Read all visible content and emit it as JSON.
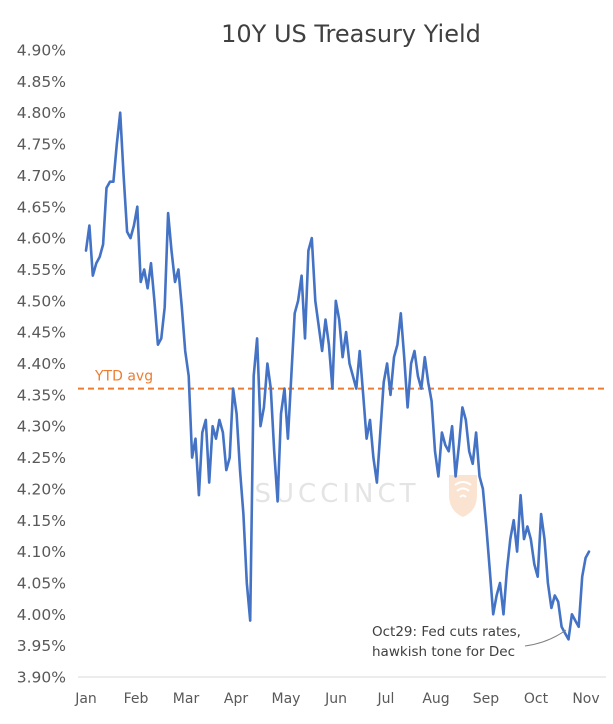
{
  "chart_data": {
    "type": "line",
    "title": "10Y US Treasury Yield",
    "xlabel": "",
    "ylabel": "",
    "ylim": [
      3.9,
      4.9
    ],
    "y_tick_values": [
      3.9,
      3.95,
      4.0,
      4.05,
      4.1,
      4.15,
      4.2,
      4.25,
      4.3,
      4.35,
      4.4,
      4.45,
      4.5,
      4.55,
      4.6,
      4.65,
      4.7,
      4.75,
      4.8,
      4.85,
      4.9
    ],
    "y_tick_labels": [
      "3.90%",
      "3.95%",
      "4.00%",
      "4.05%",
      "4.10%",
      "4.15%",
      "4.20%",
      "4.25%",
      "4.30%",
      "4.35%",
      "4.40%",
      "4.45%",
      "4.50%",
      "4.55%",
      "4.60%",
      "4.65%",
      "4.70%",
      "4.75%",
      "4.80%",
      "4.85%",
      "4.90%"
    ],
    "x_tick_labels": [
      "Jan",
      "Feb",
      "Mar",
      "Apr",
      "May",
      "Jun",
      "Jul",
      "Aug",
      "Sep",
      "Oct",
      "Nov"
    ],
    "grid": false,
    "legend": "none",
    "line_color": "#4472c4",
    "series": [
      {
        "values": [
          4.58,
          4.62,
          4.54,
          4.56,
          4.57,
          4.59,
          4.68,
          4.69,
          4.69,
          4.75,
          4.8,
          4.7,
          4.61,
          4.6,
          4.62,
          4.65,
          4.53,
          4.55,
          4.52,
          4.56,
          4.5,
          4.43,
          4.44,
          4.49,
          4.64,
          4.58,
          4.53,
          4.55,
          4.49,
          4.42,
          4.38,
          4.25,
          4.28,
          4.19,
          4.29,
          4.31,
          4.21,
          4.3,
          4.28,
          4.31,
          4.29,
          4.23,
          4.25,
          4.36,
          4.32,
          4.23,
          4.16,
          4.05,
          3.99,
          4.38,
          4.44,
          4.3,
          4.33,
          4.4,
          4.36,
          4.26,
          4.18,
          4.32,
          4.36,
          4.28,
          4.38,
          4.48,
          4.5,
          4.54,
          4.44,
          4.58,
          4.6,
          4.5,
          4.46,
          4.42,
          4.47,
          4.43,
          4.36,
          4.5,
          4.47,
          4.41,
          4.45,
          4.4,
          4.38,
          4.36,
          4.42,
          4.35,
          4.28,
          4.31,
          4.25,
          4.21,
          4.29,
          4.37,
          4.4,
          4.35,
          4.41,
          4.43,
          4.48,
          4.41,
          4.33,
          4.4,
          4.42,
          4.38,
          4.36,
          4.41,
          4.37,
          4.34,
          4.26,
          4.22,
          4.29,
          4.27,
          4.26,
          4.3,
          4.22,
          4.27,
          4.33,
          4.31,
          4.26,
          4.24,
          4.29,
          4.22,
          4.2,
          4.14,
          4.07,
          4.0,
          4.03,
          4.05,
          4.0,
          4.07,
          4.12,
          4.15,
          4.1,
          4.19,
          4.12,
          4.14,
          4.12,
          4.08,
          4.06,
          4.16,
          4.12,
          4.05,
          4.01,
          4.03,
          4.02,
          3.98,
          3.97,
          3.96,
          4.0,
          3.99,
          3.98,
          4.06,
          4.09,
          4.1
        ]
      }
    ],
    "reference_line": {
      "label": "YTD avg",
      "value": 4.36,
      "color": "#ed7d31"
    },
    "annotation": {
      "lines": [
        "Oct29: Fed cuts rates,",
        "hawkish tone for Dec"
      ]
    },
    "watermark": "SUCCINCT"
  }
}
